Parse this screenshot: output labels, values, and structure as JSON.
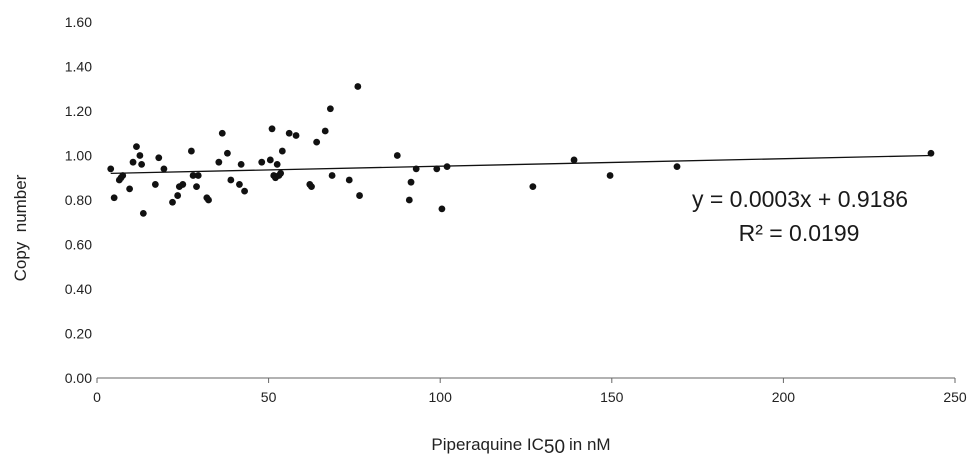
{
  "chart_data": {
    "type": "scatter",
    "title": "",
    "xlabel": "Piperaquine IC",
    "xlabel_subscript": "50",
    "xlabel_suffix": "in nM",
    "ylabel": "Copy  number",
    "xlim": [
      0,
      250
    ],
    "ylim": [
      0,
      1.6
    ],
    "xticks": [
      "0",
      "50",
      "100",
      "150",
      "200",
      "250"
    ],
    "yticks": [
      "0.00",
      "0.20",
      "0.40",
      "0.60",
      "0.80",
      "1.00",
      "1.20",
      "1.40",
      "1.60"
    ],
    "grid": false,
    "legend": "none",
    "points": [
      {
        "x": 4,
        "y": 0.94
      },
      {
        "x": 5,
        "y": 0.81
      },
      {
        "x": 6.5,
        "y": 0.89
      },
      {
        "x": 7,
        "y": 0.9
      },
      {
        "x": 7.5,
        "y": 0.91
      },
      {
        "x": 9.5,
        "y": 0.85
      },
      {
        "x": 10.5,
        "y": 0.97
      },
      {
        "x": 11.5,
        "y": 1.04
      },
      {
        "x": 12.5,
        "y": 1.0
      },
      {
        "x": 13,
        "y": 0.96
      },
      {
        "x": 13.5,
        "y": 0.74
      },
      {
        "x": 17,
        "y": 0.87
      },
      {
        "x": 18,
        "y": 0.99
      },
      {
        "x": 19.5,
        "y": 0.94
      },
      {
        "x": 22,
        "y": 0.79
      },
      {
        "x": 23.5,
        "y": 0.82
      },
      {
        "x": 24,
        "y": 0.86
      },
      {
        "x": 25,
        "y": 0.87
      },
      {
        "x": 27.5,
        "y": 1.02
      },
      {
        "x": 28,
        "y": 0.91
      },
      {
        "x": 29,
        "y": 0.86
      },
      {
        "x": 29.5,
        "y": 0.91
      },
      {
        "x": 32,
        "y": 0.81
      },
      {
        "x": 32.5,
        "y": 0.8
      },
      {
        "x": 35.5,
        "y": 0.97
      },
      {
        "x": 36.5,
        "y": 1.1
      },
      {
        "x": 38,
        "y": 1.01
      },
      {
        "x": 39,
        "y": 0.89
      },
      {
        "x": 41.5,
        "y": 0.87
      },
      {
        "x": 42,
        "y": 0.96
      },
      {
        "x": 43,
        "y": 0.84
      },
      {
        "x": 48,
        "y": 0.97
      },
      {
        "x": 50.5,
        "y": 0.98
      },
      {
        "x": 51,
        "y": 1.12
      },
      {
        "x": 51.5,
        "y": 0.91
      },
      {
        "x": 52,
        "y": 0.9
      },
      {
        "x": 52.5,
        "y": 0.96
      },
      {
        "x": 53,
        "y": 0.91
      },
      {
        "x": 53.5,
        "y": 0.92
      },
      {
        "x": 54,
        "y": 1.02
      },
      {
        "x": 56,
        "y": 1.1
      },
      {
        "x": 58,
        "y": 1.09
      },
      {
        "x": 62,
        "y": 0.87
      },
      {
        "x": 62.5,
        "y": 0.86
      },
      {
        "x": 64,
        "y": 1.06
      },
      {
        "x": 66.5,
        "y": 1.11
      },
      {
        "x": 68,
        "y": 1.21
      },
      {
        "x": 68.5,
        "y": 0.91
      },
      {
        "x": 73.5,
        "y": 0.89
      },
      {
        "x": 76,
        "y": 1.31
      },
      {
        "x": 76.5,
        "y": 0.82
      },
      {
        "x": 87.5,
        "y": 1.0
      },
      {
        "x": 91,
        "y": 0.8
      },
      {
        "x": 91.5,
        "y": 0.88
      },
      {
        "x": 93,
        "y": 0.94
      },
      {
        "x": 99,
        "y": 0.94
      },
      {
        "x": 100.5,
        "y": 0.76
      },
      {
        "x": 102,
        "y": 0.95
      },
      {
        "x": 127,
        "y": 0.86
      },
      {
        "x": 139,
        "y": 0.98
      },
      {
        "x": 149.5,
        "y": 0.91
      },
      {
        "x": 169,
        "y": 0.95
      },
      {
        "x": 243,
        "y": 1.01
      }
    ],
    "trendline": {
      "type": "linear",
      "slope": 0.0003,
      "intercept": 0.9186,
      "equation": "y = 0.0003x + 0.9186",
      "r_squared": "R² = 0.0199"
    },
    "colors": {
      "points": "#111111",
      "line": "#111111",
      "axis": "#666666"
    }
  }
}
